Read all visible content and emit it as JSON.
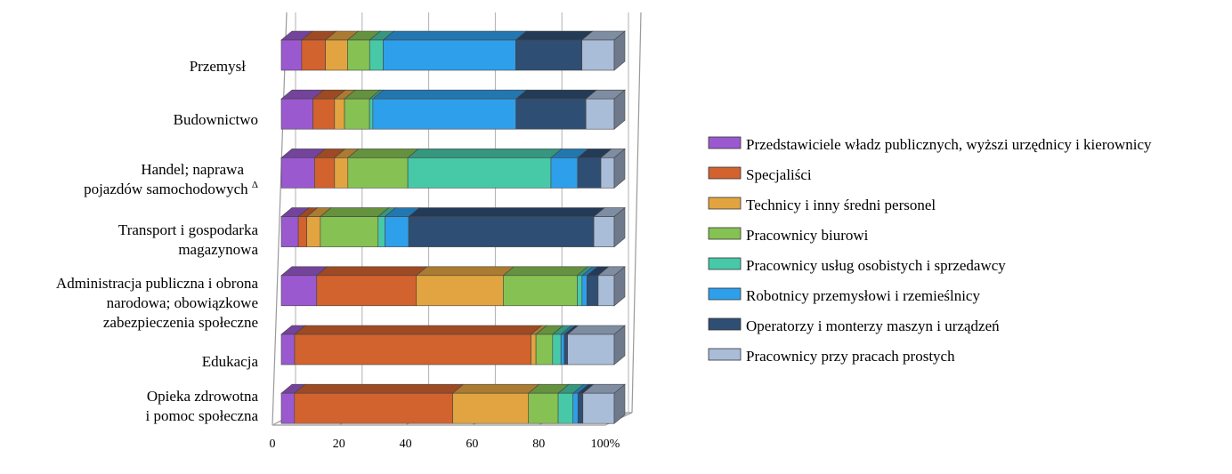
{
  "chart_data": {
    "type": "bar",
    "orientation": "horizontal",
    "stacked": "100%",
    "style": "3d",
    "categories": [
      [
        "Przemysł"
      ],
      [
        "Budownictwo"
      ],
      [
        "Handel; naprawa",
        "pojazdów samochodowych ",
        "Δ"
      ],
      [
        "Transport i gospodarka",
        "magazynowa"
      ],
      [
        "Administracja publiczna i obrona",
        "narodowa; obowiązkowe",
        "zabezpieczenia społeczne"
      ],
      [
        "Edukacja"
      ],
      [
        "Opieka zdrowotna",
        "i pomoc społeczna"
      ]
    ],
    "series": [
      {
        "name": "Przedstawiciele władz publicznych, wyższi urzędnicy i kierownicy",
        "color": "#9B59D0",
        "values": [
          6,
          9.5,
          10,
          5,
          11,
          4,
          4
        ]
      },
      {
        "name": "Specjaliści",
        "color": "#D2622E",
        "values": [
          7,
          6.5,
          6,
          2.5,
          31,
          71,
          48
        ]
      },
      {
        "name": "Technicy i inny średni personel",
        "color": "#E2A440",
        "values": [
          6.5,
          3,
          4,
          4,
          27,
          1.5,
          23
        ]
      },
      {
        "name": "Pracownicy biurowi",
        "color": "#86C253",
        "values": [
          6.5,
          7.5,
          18,
          17,
          23,
          5,
          9
        ]
      },
      {
        "name": "Pracownicy usług osobistych i sprzedawcy",
        "color": "#47C9A8",
        "values": [
          4,
          1,
          43,
          2,
          1.5,
          2.5,
          4.5
        ]
      },
      {
        "name": "Robotnicy przemysłowi i rzemieślnicy",
        "color": "#2E9FEA",
        "values": [
          39,
          43,
          8,
          7,
          1.5,
          1,
          1.5
        ]
      },
      {
        "name": "Operatorzy i monterzy maszyn i urządzeń",
        "color": "#2F4E73",
        "values": [
          19.5,
          21,
          7,
          54.5,
          3.5,
          1,
          1.5
        ]
      },
      {
        "name": "Pracownicy przy pracach prostych",
        "color": "#A9BCD8",
        "values": [
          9.5,
          8.5,
          4,
          6,
          5,
          14,
          9.5
        ]
      }
    ],
    "x_ticks": [
      "0",
      "20",
      "40",
      "60",
      "80",
      "100%"
    ],
    "xlim": [
      0,
      100
    ],
    "grid": "vertical",
    "legend": "right"
  }
}
